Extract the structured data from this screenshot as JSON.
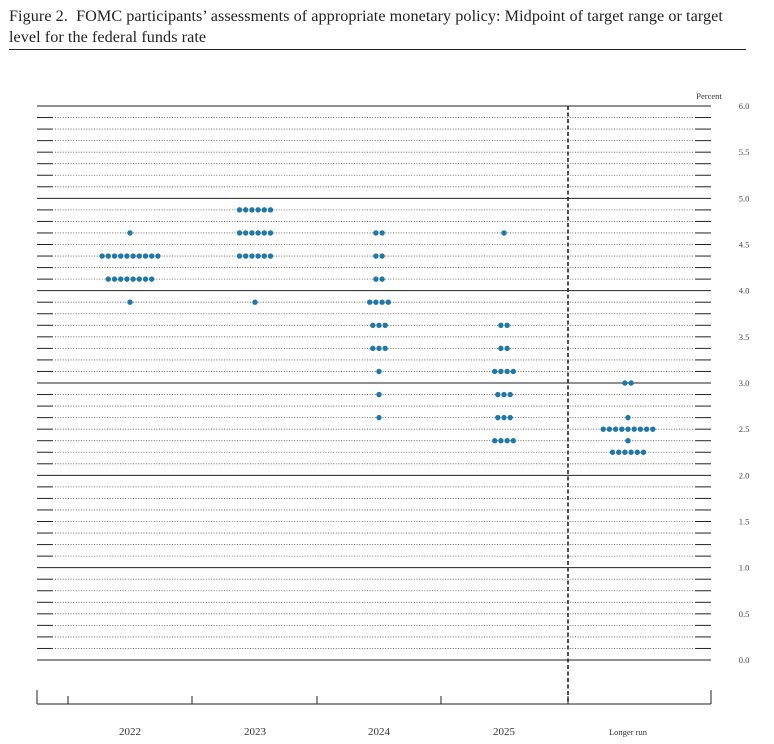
{
  "figure": {
    "number_label": "Figure 2.",
    "title": "FOMC participants’ assessments of appropriate monetary policy: Midpoint of target range or target level for the federal funds rate"
  },
  "colors": {
    "dot": "#1f78a8",
    "axis": "#222222",
    "grid": "#555555"
  },
  "chart_data": {
    "type": "scatter",
    "subtype": "dot-plot",
    "title": "FOMC participants’ assessments of appropriate monetary policy: Midpoint of target range or target level for the federal funds rate",
    "ylabel": "Percent",
    "ylim": [
      0,
      6.125
    ],
    "yticks": [
      0.0,
      0.5,
      1.0,
      1.5,
      2.0,
      2.5,
      3.0,
      3.5,
      4.0,
      4.5,
      5.0,
      5.5,
      6.0
    ],
    "ytick_labels": [
      "0.0",
      "0.5",
      "1.0",
      "1.5",
      "2.0",
      "2.5",
      "3.0",
      "3.5",
      "4.0",
      "4.5",
      "5.0",
      "5.5",
      "6.0"
    ],
    "yminor_step": 0.125,
    "grid": true,
    "categories": [
      "2022",
      "2023",
      "2024",
      "2025",
      "Longer run"
    ],
    "series": [
      {
        "category": "2022",
        "points": [
          {
            "y": 4.625,
            "count": 1
          },
          {
            "y": 4.375,
            "count": 10
          },
          {
            "y": 4.125,
            "count": 8
          },
          {
            "y": 3.875,
            "count": 1
          }
        ]
      },
      {
        "category": "2023",
        "points": [
          {
            "y": 4.875,
            "count": 6
          },
          {
            "y": 4.625,
            "count": 6
          },
          {
            "y": 4.375,
            "count": 6
          },
          {
            "y": 3.875,
            "count": 1
          }
        ]
      },
      {
        "category": "2024",
        "points": [
          {
            "y": 4.625,
            "count": 2
          },
          {
            "y": 4.375,
            "count": 2
          },
          {
            "y": 4.125,
            "count": 2
          },
          {
            "y": 3.875,
            "count": 4
          },
          {
            "y": 3.625,
            "count": 3
          },
          {
            "y": 3.375,
            "count": 3
          },
          {
            "y": 3.125,
            "count": 1
          },
          {
            "y": 2.875,
            "count": 1
          },
          {
            "y": 2.625,
            "count": 1
          }
        ]
      },
      {
        "category": "2025",
        "points": [
          {
            "y": 4.625,
            "count": 1
          },
          {
            "y": 3.625,
            "count": 2
          },
          {
            "y": 3.375,
            "count": 2
          },
          {
            "y": 3.125,
            "count": 4
          },
          {
            "y": 2.875,
            "count": 3
          },
          {
            "y": 2.625,
            "count": 3
          },
          {
            "y": 2.375,
            "count": 4
          }
        ]
      },
      {
        "category": "Longer run",
        "points": [
          {
            "y": 3.0,
            "count": 2
          },
          {
            "y": 2.625,
            "count": 1
          },
          {
            "y": 2.5,
            "count": 9
          },
          {
            "y": 2.375,
            "count": 1
          },
          {
            "y": 2.25,
            "count": 6
          }
        ]
      }
    ]
  }
}
